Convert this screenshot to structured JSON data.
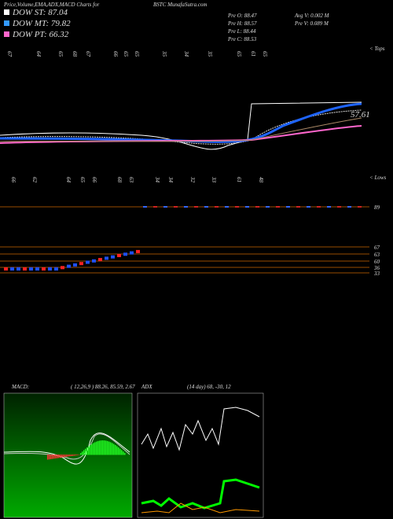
{
  "header": {
    "title": "Price,Volume,EMA,ADX,MACD Charts for",
    "symbol": "BSTC MunafaSutra.com"
  },
  "legend": [
    {
      "label": "DOW ST: 87.04",
      "color": "#ffffff"
    },
    {
      "label": "DOW MT: 79.82",
      "color": "#3399ff"
    },
    {
      "label": "DOW PT: 66.32",
      "color": "#ff66cc"
    }
  ],
  "stats": [
    "Pre O: 88.47",
    "Pre H: 88.57",
    "Pre L: 88.44",
    "Pre C: 88.53",
    "Avg V: 0.002 M",
    "Pre V: 0.089 M"
  ],
  "price_label": "57.61",
  "top_label": "< Tops",
  "bottom_label": "< Lows",
  "top_dates": [
    "67",
    "64",
    "65",
    "68",
    "67",
    "66",
    "65",
    "65",
    "35",
    "34",
    "35",
    "65",
    "61",
    "65"
  ],
  "bottom_dates": [
    "66",
    "62",
    "64",
    "65",
    "66",
    "68",
    "63",
    "34",
    "34",
    "32",
    "33",
    "61",
    "48"
  ],
  "levels": [
    "89",
    "67",
    "63",
    "60",
    "36",
    "33"
  ],
  "macd": {
    "title": "MACD:",
    "params": "( 12,26,9 ) 88.26, 85.59, 2.67"
  },
  "adx": {
    "title": "ADX",
    "params": "(14 day) 68, -30, 12"
  }
}
